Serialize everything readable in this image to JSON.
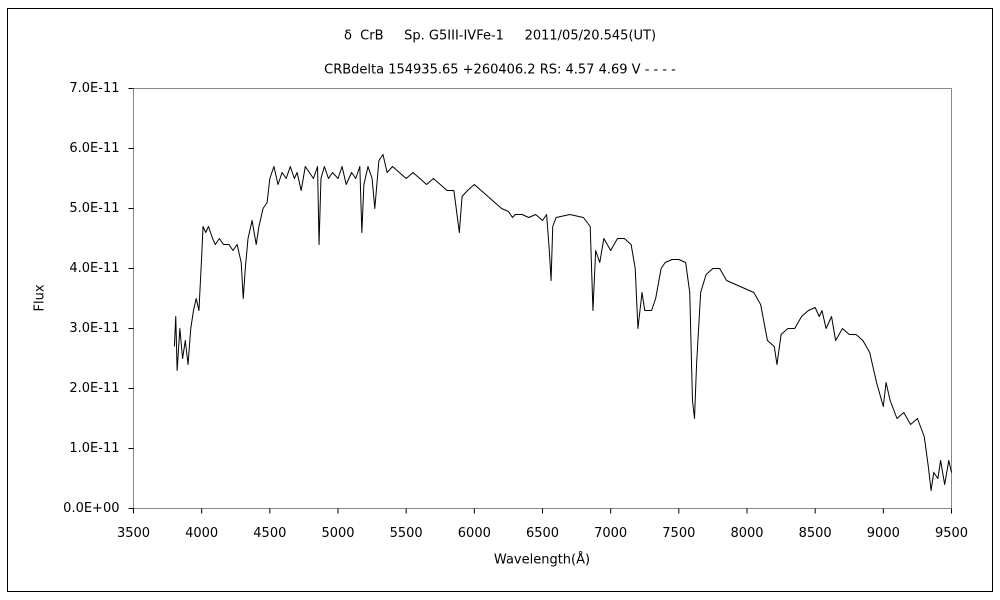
{
  "chart_data": {
    "type": "line",
    "title": "δ  CrB     Sp. G5III-IVFe-1     2011/05/20.545(UT)",
    "subtitle": "CRBdelta 154935.65 +260406.2 RS: 4.57 4.69 V - - - -",
    "x_label": "Wavelength(Å)",
    "y_label": "Flux",
    "color": "#000000",
    "xlim": [
      3500,
      9500
    ],
    "xticks": [
      3500,
      4000,
      4500,
      5000,
      5500,
      6000,
      6500,
      7000,
      7500,
      8000,
      8500,
      9000,
      9500
    ],
    "ylim": [
      0,
      7e-11
    ],
    "yticks": [
      {
        "value": 0,
        "label": "0.0E+00"
      },
      {
        "value": 1e-11,
        "label": "1.0E-11"
      },
      {
        "value": 2e-11,
        "label": "2.0E-11"
      },
      {
        "value": 3e-11,
        "label": "3.0E-11"
      },
      {
        "value": 4e-11,
        "label": "4.0E-11"
      },
      {
        "value": 5e-11,
        "label": "5.0E-11"
      },
      {
        "value": 6e-11,
        "label": "6.0E-11"
      },
      {
        "value": 7e-11,
        "label": "7.0E-11"
      }
    ],
    "x": [
      3800,
      3810,
      3820,
      3840,
      3860,
      3880,
      3900,
      3920,
      3940,
      3960,
      3980,
      4000,
      4010,
      4030,
      4050,
      4080,
      4100,
      4130,
      4160,
      4200,
      4230,
      4260,
      4290,
      4305,
      4320,
      4340,
      4370,
      4400,
      4420,
      4450,
      4480,
      4500,
      4530,
      4560,
      4590,
      4620,
      4650,
      4680,
      4700,
      4730,
      4760,
      4790,
      4820,
      4850,
      4861,
      4875,
      4900,
      4930,
      4960,
      5000,
      5030,
      5060,
      5100,
      5130,
      5160,
      5175,
      5190,
      5220,
      5250,
      5270,
      5300,
      5330,
      5360,
      5400,
      5450,
      5500,
      5550,
      5600,
      5650,
      5700,
      5750,
      5800,
      5850,
      5890,
      5910,
      5950,
      6000,
      6050,
      6100,
      6150,
      6200,
      6250,
      6280,
      6300,
      6350,
      6400,
      6450,
      6500,
      6530,
      6550,
      6563,
      6575,
      6600,
      6700,
      6800,
      6850,
      6870,
      6890,
      6920,
      6950,
      7000,
      7050,
      7100,
      7150,
      7180,
      7200,
      7230,
      7250,
      7300,
      7330,
      7370,
      7400,
      7450,
      7500,
      7550,
      7580,
      7600,
      7615,
      7630,
      7660,
      7700,
      7750,
      7800,
      7850,
      7900,
      7950,
      8000,
      8050,
      8100,
      8150,
      8200,
      8220,
      8250,
      8300,
      8350,
      8400,
      8450,
      8500,
      8530,
      8550,
      8580,
      8620,
      8650,
      8700,
      8750,
      8800,
      8850,
      8900,
      8950,
      9000,
      9020,
      9050,
      9100,
      9150,
      9200,
      9250,
      9300,
      9330,
      9350,
      9370,
      9400,
      9420,
      9450,
      9480,
      9500
    ],
    "values": [
      2.7e-11,
      3.2e-11,
      2.3e-11,
      3e-11,
      2.5e-11,
      2.8e-11,
      2.4e-11,
      3e-11,
      3.3e-11,
      3.5e-11,
      3.3e-11,
      4.2e-11,
      4.7e-11,
      4.6e-11,
      4.7e-11,
      4.5e-11,
      4.4e-11,
      4.5e-11,
      4.4e-11,
      4.4e-11,
      4.3e-11,
      4.4e-11,
      4.1e-11,
      3.5e-11,
      4e-11,
      4.5e-11,
      4.8e-11,
      4.4e-11,
      4.7e-11,
      5e-11,
      5.1e-11,
      5.5e-11,
      5.7e-11,
      5.4e-11,
      5.6e-11,
      5.5e-11,
      5.7e-11,
      5.5e-11,
      5.6e-11,
      5.3e-11,
      5.7e-11,
      5.6e-11,
      5.5e-11,
      5.7e-11,
      4.4e-11,
      5.5e-11,
      5.7e-11,
      5.5e-11,
      5.6e-11,
      5.5e-11,
      5.7e-11,
      5.4e-11,
      5.6e-11,
      5.5e-11,
      5.7e-11,
      4.6e-11,
      5.4e-11,
      5.7e-11,
      5.5e-11,
      5e-11,
      5.8e-11,
      5.9e-11,
      5.6e-11,
      5.7e-11,
      5.6e-11,
      5.5e-11,
      5.6e-11,
      5.5e-11,
      5.4e-11,
      5.5e-11,
      5.4e-11,
      5.3e-11,
      5.3e-11,
      4.6e-11,
      5.2e-11,
      5.3e-11,
      5.4e-11,
      5.3e-11,
      5.2e-11,
      5.1e-11,
      5e-11,
      4.95e-11,
      4.85e-11,
      4.9e-11,
      4.9e-11,
      4.85e-11,
      4.9e-11,
      4.8e-11,
      4.9e-11,
      4.3e-11,
      3.8e-11,
      4.7e-11,
      4.85e-11,
      4.9e-11,
      4.85e-11,
      4.7e-11,
      3.3e-11,
      4.3e-11,
      4.1e-11,
      4.5e-11,
      4.3e-11,
      4.5e-11,
      4.5e-11,
      4.4e-11,
      4e-11,
      3e-11,
      3.6e-11,
      3.3e-11,
      3.3e-11,
      3.5e-11,
      4e-11,
      4.1e-11,
      4.15e-11,
      4.15e-11,
      4.1e-11,
      3.6e-11,
      1.8e-11,
      1.5e-11,
      2.4e-11,
      3.6e-11,
      3.9e-11,
      4e-11,
      4e-11,
      3.8e-11,
      3.75e-11,
      3.7e-11,
      3.65e-11,
      3.6e-11,
      3.4e-11,
      2.8e-11,
      2.7e-11,
      2.4e-11,
      2.9e-11,
      3e-11,
      3e-11,
      3.2e-11,
      3.3e-11,
      3.35e-11,
      3.2e-11,
      3.3e-11,
      3e-11,
      3.2e-11,
      2.8e-11,
      3e-11,
      2.9e-11,
      2.9e-11,
      2.8e-11,
      2.6e-11,
      2.1e-11,
      1.7e-11,
      2.1e-11,
      1.8e-11,
      1.5e-11,
      1.6e-11,
      1.4e-11,
      1.5e-11,
      1.2e-11,
      7e-12,
      3e-12,
      6e-12,
      5e-12,
      8e-12,
      4e-12,
      8e-12,
      6e-12
    ]
  }
}
